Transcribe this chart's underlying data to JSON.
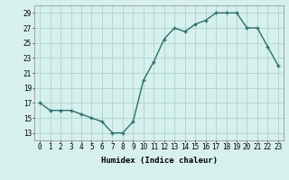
{
  "x": [
    0,
    1,
    2,
    3,
    4,
    5,
    6,
    7,
    8,
    9,
    10,
    11,
    12,
    13,
    14,
    15,
    16,
    17,
    18,
    19,
    20,
    21,
    22,
    23
  ],
  "y": [
    17,
    16,
    16,
    16,
    15.5,
    15,
    14.5,
    13,
    13,
    14.5,
    20,
    22.5,
    25.5,
    27,
    26.5,
    27.5,
    28,
    29,
    29,
    29,
    27,
    27,
    24.5,
    22
  ],
  "line_color": "#2d6e6e",
  "marker": "+",
  "bg_color": "#d6f0ee",
  "grid_color": "#b0d8d0",
  "xlabel": "Humidex (Indice chaleur)",
  "ylim": [
    12,
    30
  ],
  "yticks": [
    13,
    15,
    17,
    19,
    21,
    23,
    25,
    27,
    29
  ],
  "xticks": [
    0,
    1,
    2,
    3,
    4,
    5,
    6,
    7,
    8,
    9,
    10,
    11,
    12,
    13,
    14,
    15,
    16,
    17,
    18,
    19,
    20,
    21,
    22,
    23
  ],
  "tick_fontsize": 5.5,
  "xlabel_fontsize": 6.5,
  "linewidth": 1.0,
  "markersize": 3.0,
  "markeredgewidth": 1.0
}
